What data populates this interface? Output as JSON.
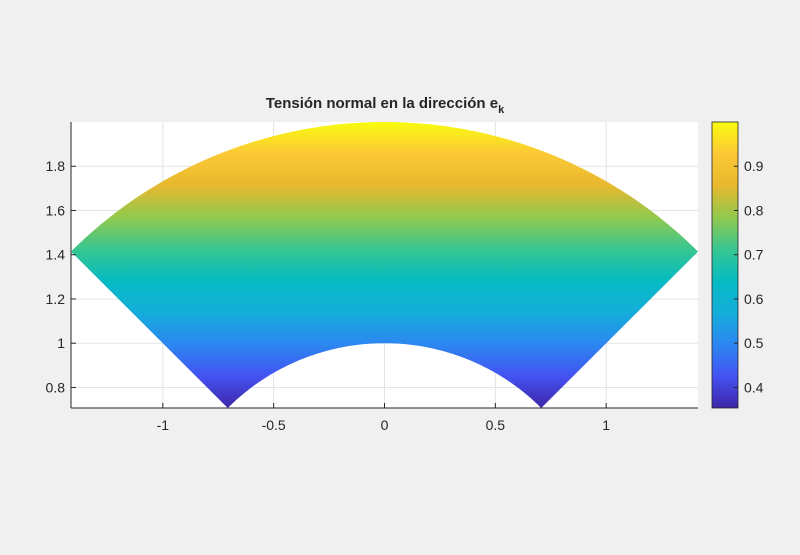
{
  "chart_data": {
    "type": "heatmap",
    "title": "Tensión normal en la dirección e",
    "title_subscript": "k",
    "xlabel": "",
    "ylabel": "",
    "xlim": [
      -1.4142,
      1.4142
    ],
    "ylim": [
      0.7071,
      2.0
    ],
    "xticks": [
      -1,
      -0.5,
      0,
      0.5,
      1
    ],
    "xtick_labels": [
      "-1",
      "-0.5",
      "0",
      "0.5",
      "1"
    ],
    "yticks": [
      0.8,
      1,
      1.2,
      1.4,
      1.6,
      1.8
    ],
    "ytick_labels": [
      "0.8",
      "1",
      "1.2",
      "1.4",
      "1.6",
      "1.8"
    ],
    "grid": true,
    "region": {
      "shape": "annular-sector",
      "inner_radius": 1,
      "outer_radius": 2,
      "angle_start_deg": 45,
      "angle_end_deg": 135
    },
    "field": "value increases linearly with y (value ≈ y/2)",
    "colormap": "parula",
    "colorbar": {
      "location": "right",
      "limits": [
        0.3536,
        1.0
      ],
      "ticks": [
        0.4,
        0.5,
        0.6,
        0.7,
        0.8,
        0.9
      ],
      "tick_labels": [
        "0.4",
        "0.5",
        "0.6",
        "0.7",
        "0.8",
        "0.9"
      ]
    },
    "colors": [
      "#3e26a8",
      "#4352f2",
      "#2c87f0",
      "#14adda",
      "#06bbc1",
      "#38c691",
      "#91c94d",
      "#e7b82e",
      "#fcc935",
      "#f9fb0e"
    ]
  }
}
